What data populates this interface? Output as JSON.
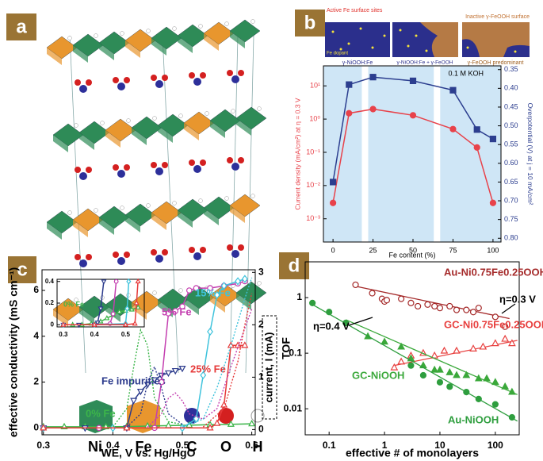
{
  "panel_labels": [
    "a",
    "b",
    "c",
    "d"
  ],
  "structure_legend": [
    "Ni",
    "Fe",
    "C",
    "O",
    "H"
  ],
  "schematic": [
    {
      "top": "Active Fe surface sites",
      "inset": "Fe dopant",
      "caption": "γ-NiOOH:Fe"
    },
    {
      "caption": "γ-NiOOH:Fe + γ-FeOOH"
    },
    {
      "top": "Inactive γ-FeOOH surface",
      "caption": "γ-FeOOH predominant"
    }
  ],
  "chart_data": [
    {
      "type": "line",
      "xlabel": "Fe content (%)",
      "ylabel": "Current density (mA/cm²) at η = 0.3 V",
      "y2label": "Overpotential (V) at j = 10 mA/cm²",
      "annotations": [
        "0.1 M KOH"
      ],
      "xlim": [
        -6,
        105
      ],
      "xticks": [
        0,
        25,
        50,
        75,
        100
      ],
      "ylog": true,
      "ylim": [
        0.0002,
        40
      ],
      "yticks": [
        {
          "value": 0.001,
          "label": "10⁻³"
        },
        {
          "value": 0.01,
          "label": "10⁻²"
        },
        {
          "value": 0.1,
          "label": "10⁻¹"
        },
        {
          "value": 1,
          "label": "10⁰"
        },
        {
          "value": 10,
          "label": "10¹"
        }
      ],
      "y2lim": [
        0.81,
        0.34
      ],
      "y2ticks": [
        0.35,
        {
          "value": 0.4,
          "label": "0.40"
        },
        0.45,
        {
          "value": 0.5,
          "label": "0.50"
        },
        0.55,
        {
          "value": 0.6,
          "label": "0.60"
        },
        0.65,
        {
          "value": 0.7,
          "label": "0.70"
        },
        0.75,
        {
          "value": 0.8,
          "label": "0.80"
        }
      ],
      "shaded_x": [
        [
          -6,
          18
        ],
        [
          22,
          63
        ],
        [
          67,
          105
        ]
      ],
      "shade_color": "#cfe6f6",
      "series": [
        {
          "color": "#e8424a",
          "marker": "circle-filled",
          "x": [
            0,
            10,
            25,
            50,
            75,
            90,
            100
          ],
          "values": [
            0.003,
            1.5,
            2,
            1.3,
            0.5,
            0.14,
            0.003
          ]
        },
        {
          "color": "#2c3e8f",
          "marker": "square-filled",
          "axis": "y2",
          "x": [
            0,
            10,
            25,
            50,
            75,
            90,
            100
          ],
          "values": [
            0.65,
            0.39,
            0.37,
            0.38,
            0.405,
            0.51,
            0.535
          ]
        }
      ]
    },
    {
      "type": "line",
      "xlabel": "WE, V vs. Hg/HgO",
      "ylabel": "effective conductivity (mS cm⁻¹)",
      "y2label": "current, I (mA)",
      "xlim": [
        0.298,
        0.605
      ],
      "xticks": [
        0.3,
        0.4,
        0.5,
        0.6
      ],
      "ylim": [
        -0.3,
        6.9
      ],
      "yticks": [
        0,
        2,
        4,
        6
      ],
      "y2lim": [
        -0.1,
        3.05
      ],
      "y2ticks": [
        0,
        1,
        2,
        3
      ],
      "series": [
        {
          "name": "0% Fe",
          "color": "#3cb54a",
          "marker": "triangle-up-open",
          "x": [
            0.3,
            0.33,
            0.36,
            0.39,
            0.42,
            0.45,
            0.48,
            0.51,
            0.54,
            0.57,
            0.6
          ],
          "values": [
            0.05,
            0.05,
            0.05,
            0.05,
            0.06,
            0.08,
            0.1,
            0.12,
            0.14,
            0.16,
            0.18
          ]
        },
        {
          "name": "Fe impurities",
          "color": "#2b3a8c",
          "marker": "triangle-down-open",
          "x": [
            0.3,
            0.36,
            0.42,
            0.43,
            0.44,
            0.45,
            0.46,
            0.47,
            0.48,
            0.49,
            0.5
          ],
          "values": [
            0,
            0,
            0,
            1.2,
            1.6,
            1.9,
            2.1,
            2.3,
            2.4,
            2.5,
            2.6
          ]
        },
        {
          "name": "5% Fe",
          "color": "#c43fb0",
          "marker": "circle-open",
          "x": [
            0.3,
            0.38,
            0.46,
            0.47,
            0.48,
            0.49,
            0.5,
            0.51,
            0.52,
            0.54,
            0.56,
            0.58,
            0.59
          ],
          "values": [
            0,
            0,
            0,
            2,
            5,
            5.1,
            5.3,
            6,
            6.1,
            6.1,
            6.2,
            6.3,
            6.4
          ]
        },
        {
          "name": "15% Fe",
          "color": "#3fc3dc",
          "marker": "diamond-open",
          "x": [
            0.3,
            0.4,
            0.5,
            0.52,
            0.53,
            0.54,
            0.55,
            0.56,
            0.58,
            0.59
          ],
          "values": [
            0,
            0,
            0,
            0.4,
            2.3,
            4.2,
            5.8,
            6.2,
            6.4,
            6.5
          ]
        },
        {
          "name": "25% Fe",
          "color": "#e63a3a",
          "marker": "triangle-up-open",
          "x": [
            0.3,
            0.42,
            0.54,
            0.55,
            0.56,
            0.57,
            0.58,
            0.59
          ],
          "values": [
            0,
            0,
            0,
            0.2,
            1,
            3.6,
            3.6,
            3.6
          ]
        },
        {
          "color": "#3cb54a",
          "dashed": true,
          "axis": "y2",
          "x": [
            0.4,
            0.42,
            0.43,
            0.44,
            0.45,
            0.46,
            0.48,
            0.5
          ],
          "values": [
            0.05,
            0.4,
            1.2,
            1.9,
            1.6,
            0.6,
            0.15,
            0.1
          ]
        },
        {
          "color": "#2b3a8c",
          "dashed": true,
          "axis": "y2",
          "x": [
            0.42,
            0.44,
            0.45,
            0.46,
            0.47,
            0.48,
            0.5
          ],
          "values": [
            0.05,
            0.3,
            0.9,
            1.2,
            0.8,
            0.3,
            0.1
          ]
        },
        {
          "color": "#c43fb0",
          "dashed": true,
          "axis": "y2",
          "x": [
            0.45,
            0.47,
            0.48,
            0.49,
            0.5,
            0.51,
            0.53,
            0.55,
            0.57,
            0.6
          ],
          "values": [
            0.05,
            0.3,
            0.6,
            0.7,
            0.55,
            0.3,
            0.2,
            0.4,
            1.2,
            2.3
          ]
        },
        {
          "color": "#3fc3dc",
          "dashed": true,
          "axis": "y2",
          "x": [
            0.5,
            0.53,
            0.55,
            0.57,
            0.59,
            0.6
          ],
          "values": [
            0.05,
            0.2,
            0.8,
            1.6,
            2.5,
            2.9
          ]
        },
        {
          "color": "#e63a3a",
          "dashed": true,
          "axis": "y2",
          "x": [
            0.53,
            0.56,
            0.58,
            0.59,
            0.6
          ],
          "values": [
            0.05,
            0.4,
            1.3,
            2,
            2.6
          ]
        }
      ]
    },
    {
      "type": "line",
      "xlim": [
        0.28,
        0.56
      ],
      "xticks": [
        0.3,
        0.4,
        0.5
      ],
      "ylim": [
        -0.02,
        0.42
      ],
      "yticks": [
        0,
        0.2,
        0.4
      ],
      "series": [
        {
          "name": "0% Fe",
          "color": "#3cb54a",
          "marker": "triangle-up-open",
          "x": [
            0.3,
            0.33,
            0.36,
            0.39,
            0.42,
            0.44,
            0.46,
            0.48,
            0.5,
            0.52,
            0.54
          ],
          "values": [
            0,
            0,
            0,
            0.01,
            0.03,
            0.06,
            0.09,
            0.12,
            0.13,
            0.14,
            0.16
          ]
        },
        {
          "color": "#2b3a8c",
          "marker": "triangle-down-open",
          "x": [
            0.3,
            0.35,
            0.4,
            0.41,
            0.42,
            0.43
          ],
          "values": [
            0,
            0,
            0,
            0.02,
            0.15,
            0.4
          ]
        },
        {
          "color": "#c43fb0",
          "marker": "circle-open",
          "x": [
            0.3,
            0.4,
            0.45,
            0.46,
            0.47
          ],
          "values": [
            0,
            0,
            0.01,
            0.1,
            0.4
          ]
        },
        {
          "color": "#3fc3dc",
          "marker": "diamond-open",
          "x": [
            0.3,
            0.4,
            0.5,
            0.505,
            0.51
          ],
          "values": [
            0,
            0,
            0.01,
            0.15,
            0.4
          ]
        },
        {
          "color": "#e63a3a",
          "marker": "triangle-up-open",
          "x": [
            0.3,
            0.4,
            0.5,
            0.53,
            0.535,
            0.54
          ],
          "values": [
            0,
            0,
            0,
            0.01,
            0.2,
            0.4
          ]
        }
      ]
    },
    {
      "type": "scatter",
      "xlabel": "effective # of monolayers",
      "ylabel": "TOF",
      "annotations": [
        "η=0.3 V",
        "η=0.4 V"
      ],
      "xlog": true,
      "ylog": true,
      "xlim": [
        0.037,
        270
      ],
      "xticks": [
        0.1,
        1,
        10,
        100
      ],
      "ylim": [
        0.0034,
        4.4
      ],
      "yticks": [
        0.01,
        0.1,
        1
      ],
      "series": [
        {
          "name": "Au-Ni0.75Fe0.25OOH",
          "color": "#a52a2a",
          "marker": "circle-open",
          "x": [
            0.3,
            0.6,
            0.9,
            1,
            1.1,
            2,
            3,
            4,
            6,
            8,
            10,
            15,
            20,
            30,
            40,
            50,
            100,
            150
          ],
          "values": [
            1.7,
            1.2,
            0.95,
            0.85,
            0.9,
            0.95,
            0.8,
            0.7,
            0.75,
            0.7,
            0.65,
            0.7,
            0.6,
            0.6,
            0.55,
            0.65,
            0.45,
            0.3
          ],
          "fit": {
            "x": [
              0.3,
              180
            ],
            "values": [
              1.6,
              0.42
            ]
          }
        },
        {
          "name": "GC-Ni0.75Fe0.25OOH",
          "color": "#e8403f",
          "marker": "triangle-up-open",
          "x": [
            1.5,
            2,
            3,
            5,
            8,
            12,
            20,
            40,
            60,
            100,
            150,
            200
          ],
          "values": [
            0.055,
            0.07,
            0.09,
            0.1,
            0.09,
            0.11,
            0.11,
            0.12,
            0.13,
            0.15,
            0.18,
            0.15
          ],
          "fit": {
            "x": [
              1.5,
              250
            ],
            "values": [
              0.06,
              0.17
            ]
          }
        },
        {
          "name": "GC-NiOOH",
          "color": "#3aa83a",
          "marker": "triangle-up-filled",
          "x": [
            0.5,
            1,
            2,
            3,
            5,
            8,
            10,
            15,
            20,
            30,
            50,
            70,
            100,
            150,
            200
          ],
          "values": [
            0.2,
            0.16,
            0.13,
            0.08,
            0.06,
            0.05,
            0.05,
            0.045,
            0.04,
            0.04,
            0.035,
            0.035,
            0.03,
            0.025,
            0.02
          ],
          "fit": {
            "x": [
              0.2,
              250
            ],
            "values": [
              0.4,
              0.018
            ]
          }
        },
        {
          "name": "Au-NiOOH",
          "color": "#2e9e3e",
          "marker": "circle-filled",
          "x": [
            0.05,
            0.1,
            0.2,
            3,
            5,
            10,
            15,
            30,
            50,
            100,
            200
          ],
          "values": [
            0.8,
            0.55,
            0.35,
            0.06,
            0.04,
            0.03,
            0.025,
            0.02,
            0.015,
            0.012,
            0.007
          ],
          "fit": {
            "x": [
              0.05,
              250
            ],
            "values": [
              0.75,
              0.006
            ]
          }
        }
      ]
    }
  ]
}
